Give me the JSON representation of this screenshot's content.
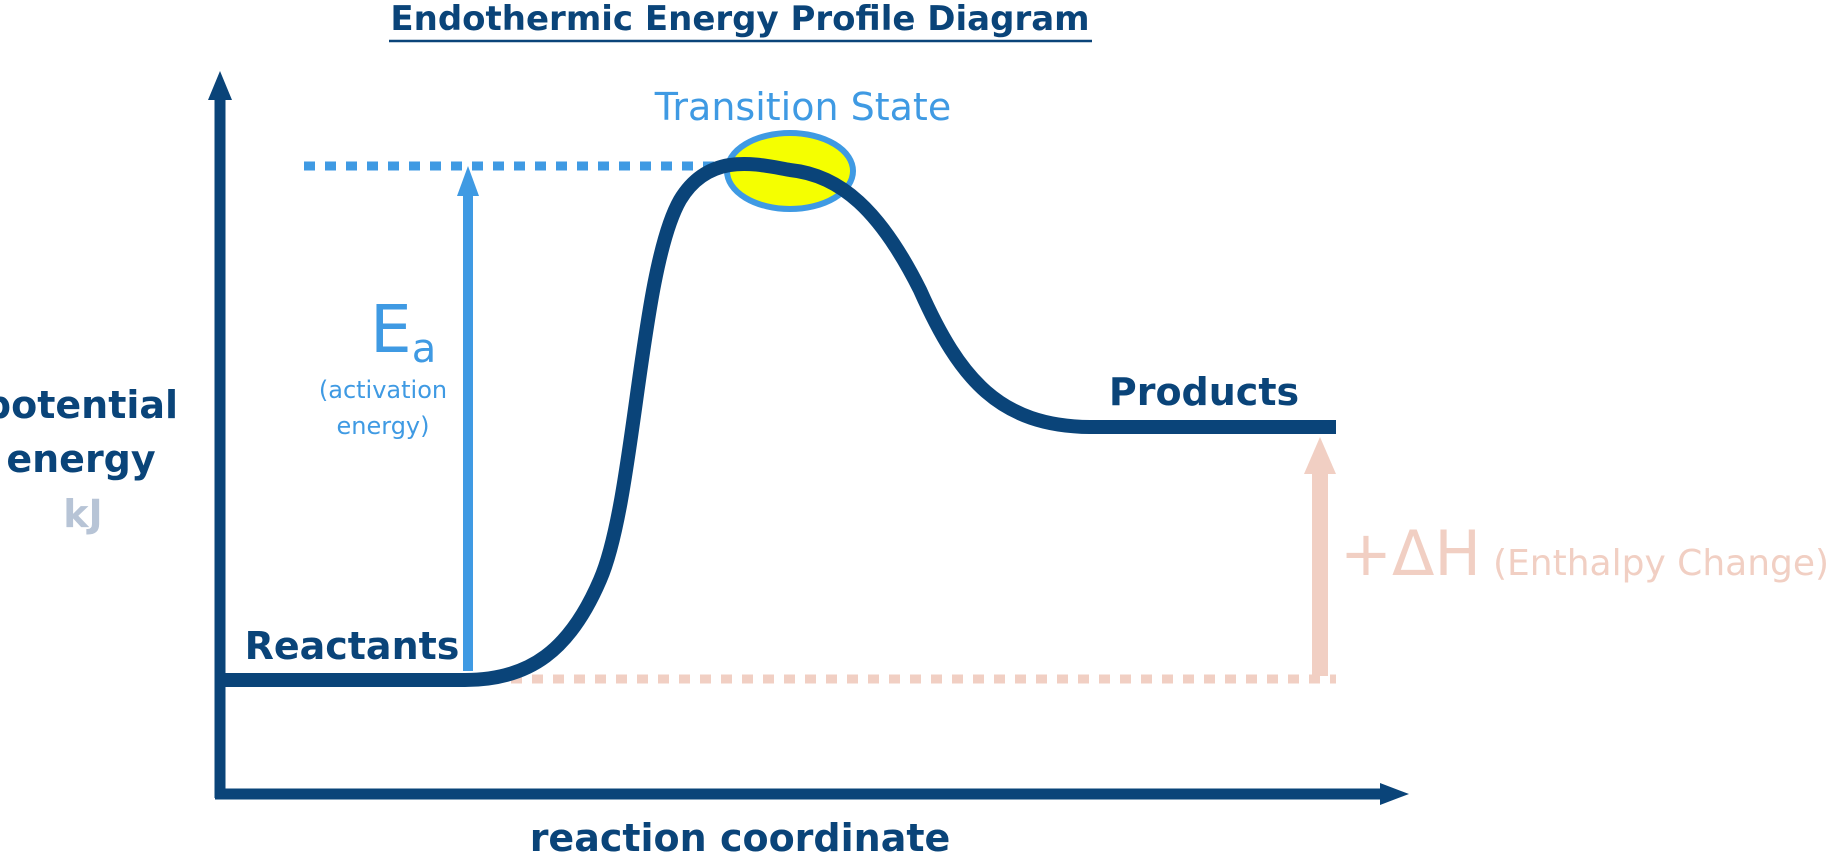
{
  "title": "Endothermic Energy Profile Diagram",
  "transition_state": "Transition State",
  "reactants": "Reactants",
  "products": "Products",
  "activation_energy": {
    "symbol": "E",
    "subscript": "a",
    "desc_line1": "(activation",
    "desc_line2": "energy)"
  },
  "enthalpy_change": {
    "symbol": "+ΔH",
    "desc": "(Enthalpy Change)"
  },
  "y_axis": {
    "line1": "potential",
    "line2": "energy",
    "unit": "kJ"
  },
  "x_axis": {
    "label": "reaction coordinate"
  },
  "colors": {
    "dark_blue": "#0a4479",
    "light_blue": "#3f9ae3",
    "highlight_yellow": "#f5ff00",
    "peach": "#f1cfc3",
    "unit_gray": "#b7c4d6"
  }
}
